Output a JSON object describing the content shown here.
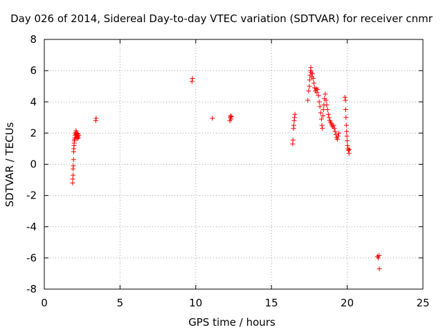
{
  "chart_data": {
    "type": "scatter",
    "title": "Day 026 of 2014, Sidereal Day-to-day VTEC variation (SDTVAR) for receiver cnmr",
    "xlabel": "GPS time / hours",
    "ylabel": "SDTVAR / TECUs",
    "xlim": [
      0,
      25
    ],
    "ylim": [
      -8,
      8
    ],
    "xticks": [
      0,
      5,
      10,
      15,
      20,
      25
    ],
    "yticks": [
      -8,
      -6,
      -4,
      -2,
      0,
      2,
      4,
      6,
      8
    ],
    "xtick_labels": [
      "0",
      "5",
      "10",
      "15",
      "20",
      "25"
    ],
    "ytick_labels": [
      "-8",
      "-6",
      "-4",
      "-2",
      "0",
      "2",
      "4",
      "6",
      "8"
    ],
    "grid": true,
    "marker": "+",
    "color": "#ff0000",
    "series": [
      {
        "name": "SDTVAR",
        "points": [
          [
            1.87,
            -1.2
          ],
          [
            1.88,
            -0.95
          ],
          [
            1.9,
            -0.7
          ],
          [
            1.9,
            -0.3
          ],
          [
            1.92,
            -0.1
          ],
          [
            1.93,
            0.3
          ],
          [
            1.94,
            0.8
          ],
          [
            1.95,
            1.0
          ],
          [
            1.96,
            1.2
          ],
          [
            1.97,
            1.35
          ],
          [
            1.98,
            1.5
          ],
          [
            2.0,
            1.6
          ],
          [
            2.02,
            1.7
          ],
          [
            2.04,
            1.85
          ],
          [
            2.06,
            1.95
          ],
          [
            2.08,
            2.05
          ],
          [
            2.1,
            2.15
          ],
          [
            2.12,
            1.9
          ],
          [
            2.14,
            2.0
          ],
          [
            2.16,
            1.75
          ],
          [
            2.18,
            1.65
          ],
          [
            2.2,
            1.8
          ],
          [
            2.22,
            1.95
          ],
          [
            2.25,
            1.7
          ],
          [
            2.28,
            1.85
          ],
          [
            3.4,
            2.8
          ],
          [
            3.42,
            2.95
          ],
          [
            9.75,
            5.3
          ],
          [
            9.78,
            5.5
          ],
          [
            11.1,
            2.95
          ],
          [
            12.25,
            2.8
          ],
          [
            12.27,
            3.0
          ],
          [
            12.3,
            3.1
          ],
          [
            12.33,
            2.9
          ],
          [
            12.35,
            3.05
          ],
          [
            16.4,
            1.3
          ],
          [
            16.42,
            1.55
          ],
          [
            16.45,
            2.3
          ],
          [
            16.47,
            2.5
          ],
          [
            16.5,
            2.8
          ],
          [
            16.52,
            3.0
          ],
          [
            16.55,
            3.2
          ],
          [
            17.4,
            4.1
          ],
          [
            17.45,
            4.7
          ],
          [
            17.5,
            5.0
          ],
          [
            17.52,
            5.4
          ],
          [
            17.55,
            5.7
          ],
          [
            17.58,
            6.0
          ],
          [
            17.6,
            6.2
          ],
          [
            17.63,
            5.9
          ],
          [
            17.66,
            5.6
          ],
          [
            17.7,
            5.8
          ],
          [
            17.75,
            5.5
          ],
          [
            17.8,
            5.2
          ],
          [
            17.85,
            4.9
          ],
          [
            17.9,
            4.7
          ],
          [
            17.95,
            4.85
          ],
          [
            18.0,
            4.6
          ],
          [
            18.05,
            4.8
          ],
          [
            18.1,
            4.4
          ],
          [
            18.15,
            4.0
          ],
          [
            18.2,
            3.7
          ],
          [
            18.25,
            3.3
          ],
          [
            18.3,
            2.9
          ],
          [
            18.33,
            2.5
          ],
          [
            18.36,
            2.3
          ],
          [
            18.4,
            3.1
          ],
          [
            18.43,
            3.5
          ],
          [
            18.46,
            3.8
          ],
          [
            18.5,
            4.2
          ],
          [
            18.55,
            4.5
          ],
          [
            18.6,
            4.1
          ],
          [
            18.65,
            3.8
          ],
          [
            18.7,
            3.5
          ],
          [
            18.75,
            3.2
          ],
          [
            18.8,
            3.0
          ],
          [
            18.85,
            2.8
          ],
          [
            18.9,
            2.7
          ],
          [
            18.95,
            2.6
          ],
          [
            19.0,
            2.5
          ],
          [
            19.05,
            2.4
          ],
          [
            19.1,
            2.5
          ],
          [
            19.15,
            2.3
          ],
          [
            19.2,
            2.1
          ],
          [
            19.25,
            1.9
          ],
          [
            19.3,
            1.7
          ],
          [
            19.35,
            1.6
          ],
          [
            19.4,
            1.8
          ],
          [
            19.45,
            2.0
          ],
          [
            19.85,
            4.3
          ],
          [
            19.88,
            4.1
          ],
          [
            19.9,
            3.5
          ],
          [
            19.92,
            3.0
          ],
          [
            19.94,
            2.5
          ],
          [
            19.96,
            2.1
          ],
          [
            19.98,
            1.8
          ],
          [
            20.0,
            1.5
          ],
          [
            20.02,
            1.2
          ],
          [
            20.05,
            1.0
          ],
          [
            20.08,
            0.9
          ],
          [
            20.12,
            0.7
          ],
          [
            20.15,
            0.95
          ],
          [
            22.0,
            -5.9
          ],
          [
            22.05,
            -6.0
          ],
          [
            22.1,
            -5.85
          ],
          [
            22.12,
            -6.7
          ]
        ]
      }
    ]
  }
}
